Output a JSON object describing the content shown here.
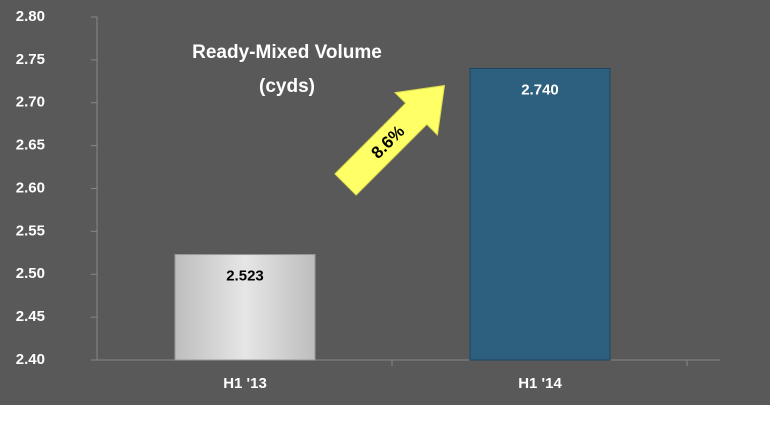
{
  "chart_data": {
    "type": "bar",
    "title": "Ready-Mixed Volume",
    "subtitle": "(cyds)",
    "categories": [
      "H1 '13",
      "H1 '14"
    ],
    "values": [
      2.523,
      2.74
    ],
    "value_labels": [
      "2.523",
      "2.740"
    ],
    "colors": [
      "#d4d4d4",
      "#2d5f7e"
    ],
    "ylim": [
      2.4,
      2.8
    ],
    "yticks": [
      {
        "value": 2.4,
        "label": "2.40"
      },
      {
        "value": 2.45,
        "label": "2.45"
      },
      {
        "value": 2.5,
        "label": "2.50"
      },
      {
        "value": 2.55,
        "label": "2.55"
      },
      {
        "value": 2.6,
        "label": "2.60"
      },
      {
        "value": 2.65,
        "label": "2.65"
      },
      {
        "value": 2.7,
        "label": "2.70"
      },
      {
        "value": 2.75,
        "label": "2.75"
      },
      {
        "value": 2.8,
        "label": "2.80"
      }
    ],
    "annotations": [
      {
        "text": "8.6%"
      }
    ]
  }
}
